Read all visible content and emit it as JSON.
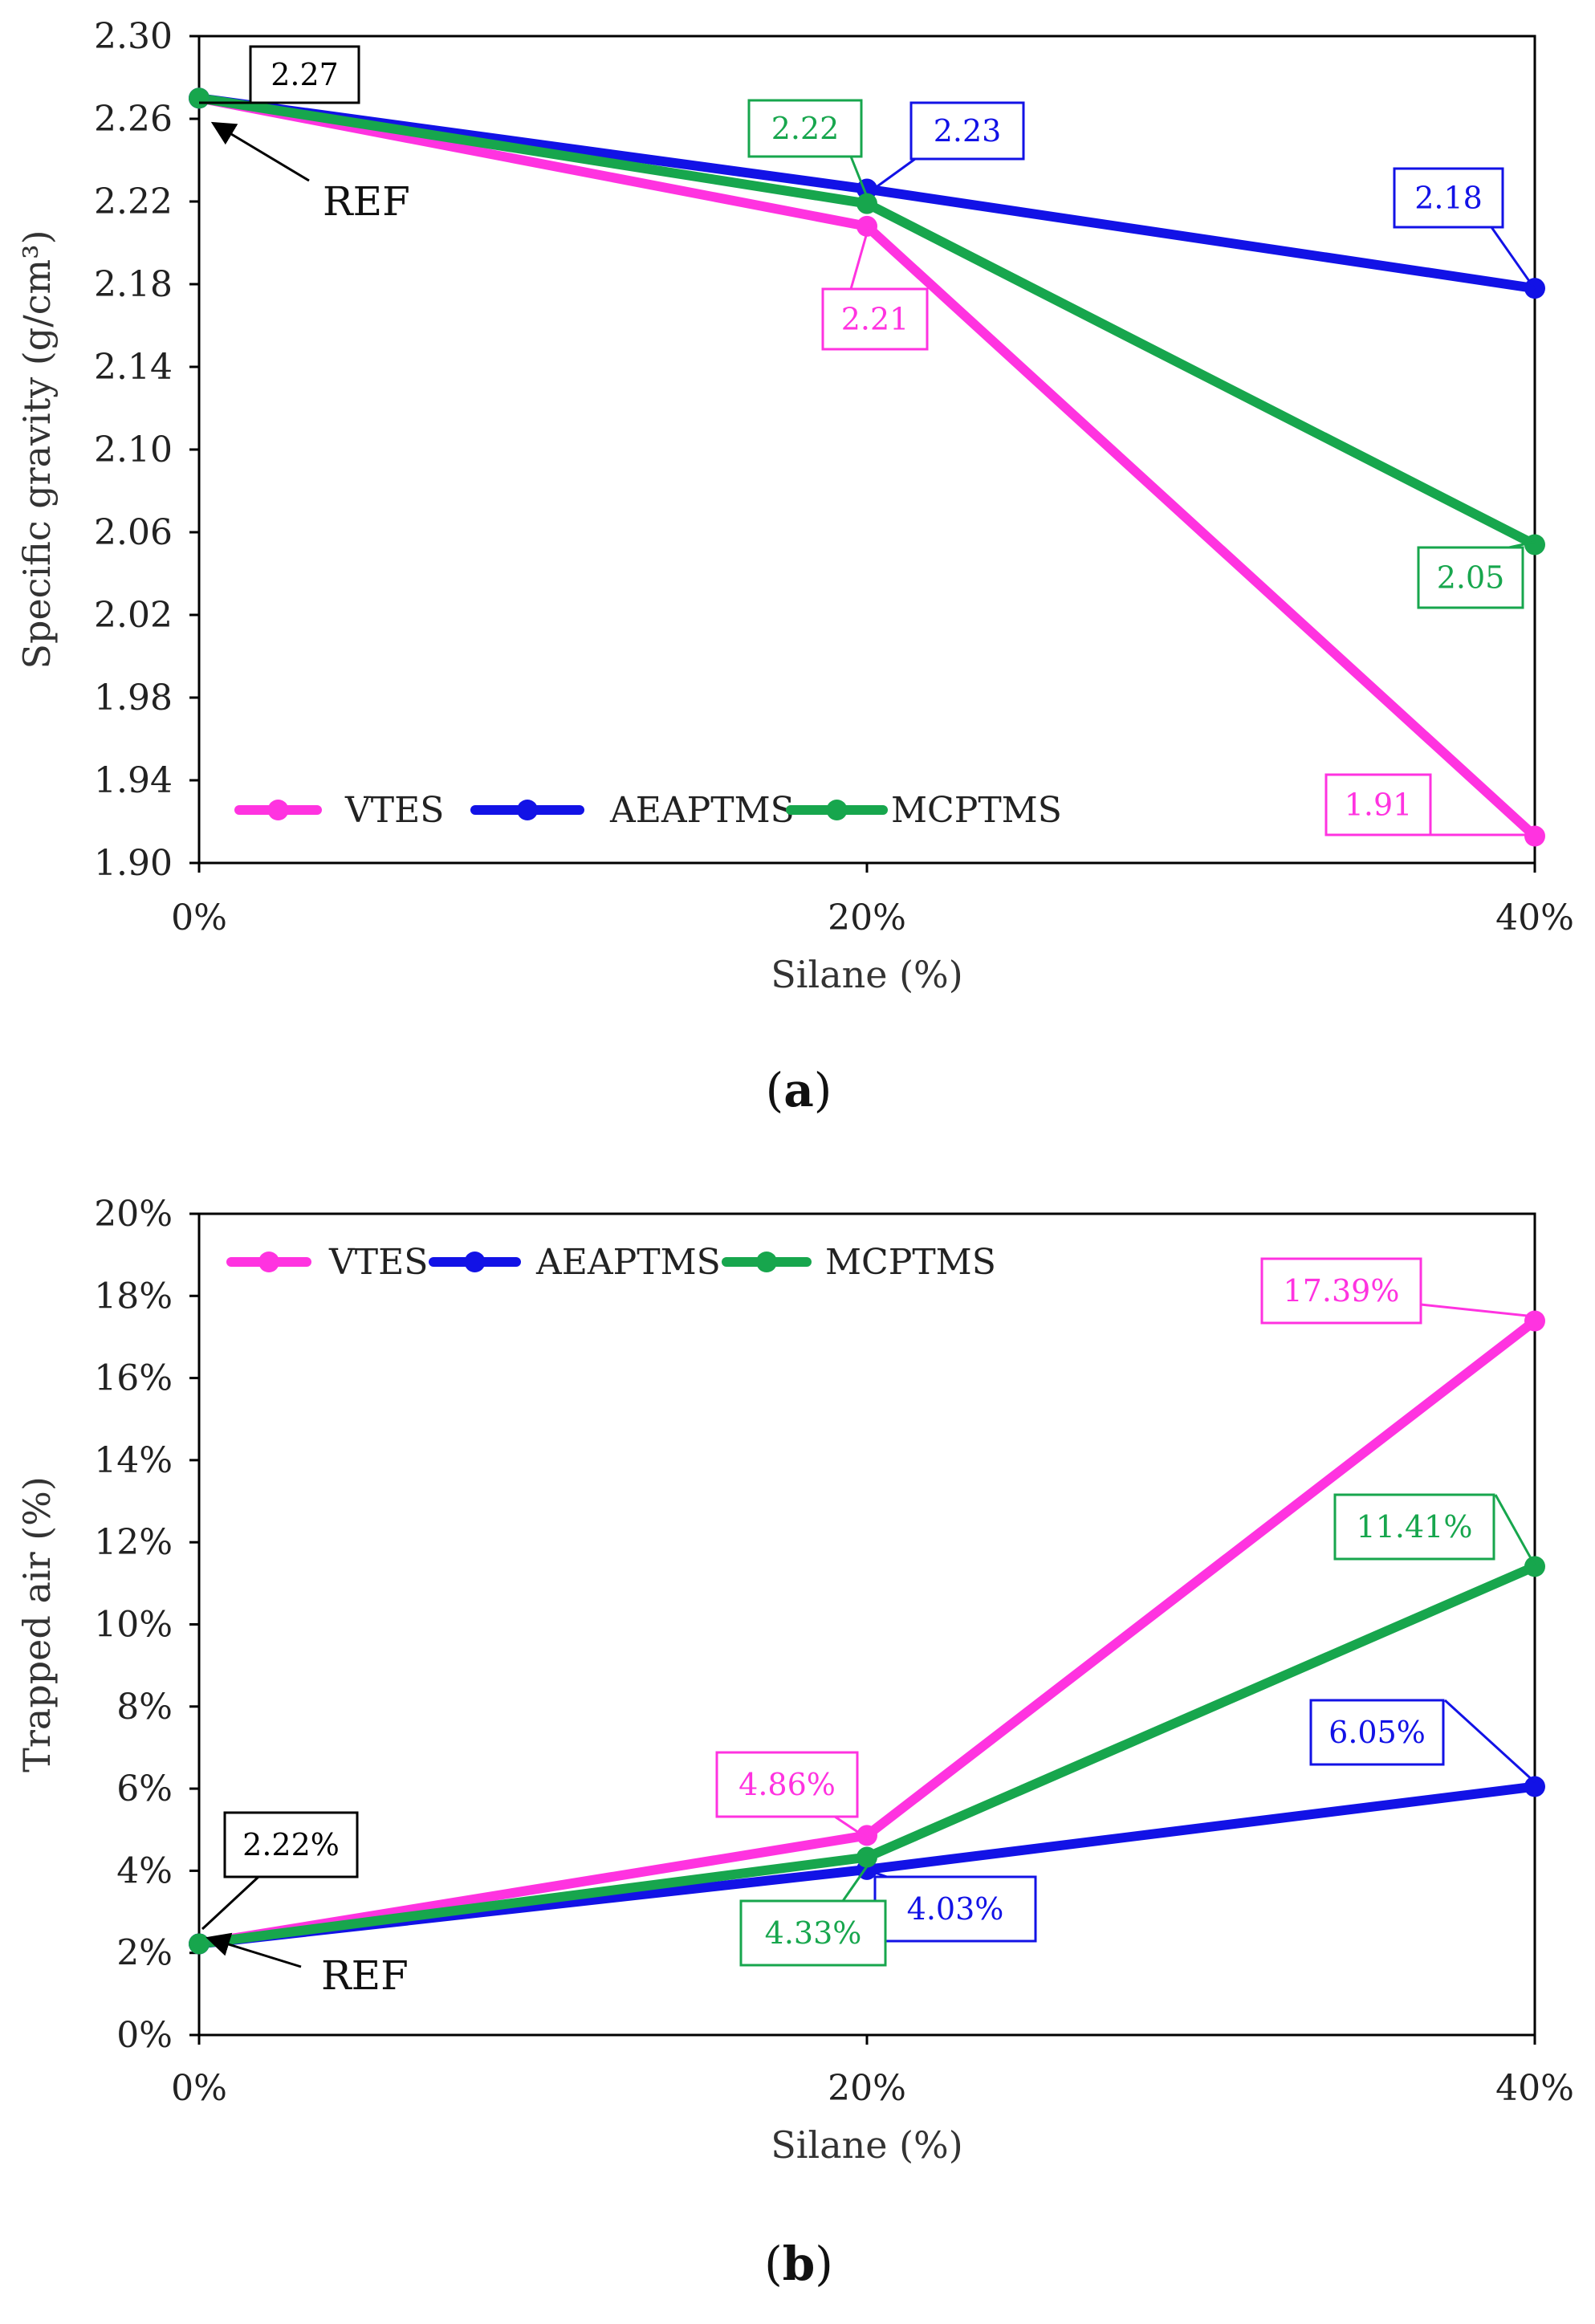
{
  "colors": {
    "VTES": "#FF33E0",
    "AEAPTMS": "#1212E6",
    "MCPTMS": "#17A64D",
    "ref": "#000000"
  },
  "chart_data": [
    {
      "type": "line",
      "caption_letter": "a",
      "xlabel": "Silane (%)",
      "ylabel": "Specific gravity (g/cm³)",
      "categories": [
        "0%",
        "20%",
        "40%"
      ],
      "ylim": [
        1.9,
        2.3
      ],
      "yticks": [
        "1.90",
        "1.94",
        "1.98",
        "2.02",
        "2.06",
        "2.10",
        "2.14",
        "2.18",
        "2.22",
        "2.26",
        "2.30"
      ],
      "ytick_values": [
        1.9,
        1.94,
        1.98,
        2.02,
        2.06,
        2.1,
        2.14,
        2.18,
        2.22,
        2.26,
        2.3
      ],
      "grid": false,
      "legend": "bottom-left",
      "series": [
        {
          "name": "VTES",
          "values": [
            2.27,
            2.208,
            1.913
          ]
        },
        {
          "name": "AEAPTMS",
          "values": [
            2.27,
            2.226,
            2.178
          ]
        },
        {
          "name": "MCPTMS",
          "values": [
            2.27,
            2.219,
            2.054
          ]
        }
      ],
      "annotations": [
        {
          "text": "2.27",
          "series": "REF",
          "point": 0
        },
        {
          "text": "REF",
          "series": "REF",
          "point": 0
        },
        {
          "text": "2.22",
          "series": "MCPTMS",
          "point": 1
        },
        {
          "text": "2.23",
          "series": "AEAPTMS",
          "point": 1
        },
        {
          "text": "2.21",
          "series": "VTES",
          "point": 1
        },
        {
          "text": "2.18",
          "series": "AEAPTMS",
          "point": 2
        },
        {
          "text": "2.05",
          "series": "MCPTMS",
          "point": 2
        },
        {
          "text": "1.91",
          "series": "VTES",
          "point": 2
        }
      ]
    },
    {
      "type": "line",
      "caption_letter": "b",
      "xlabel": "Silane (%)",
      "ylabel": "Trapped air (%)",
      "categories": [
        "0%",
        "20%",
        "40%"
      ],
      "ylim": [
        0,
        20
      ],
      "yticks": [
        "0%",
        "2%",
        "4%",
        "6%",
        "8%",
        "10%",
        "12%",
        "14%",
        "16%",
        "18%",
        "20%"
      ],
      "ytick_values": [
        0,
        2,
        4,
        6,
        8,
        10,
        12,
        14,
        16,
        18,
        20
      ],
      "grid": false,
      "legend": "top-left",
      "series": [
        {
          "name": "VTES",
          "values": [
            2.22,
            4.86,
            17.39
          ]
        },
        {
          "name": "AEAPTMS",
          "values": [
            2.22,
            4.03,
            6.05
          ]
        },
        {
          "name": "MCPTMS",
          "values": [
            2.22,
            4.33,
            11.41
          ]
        }
      ],
      "annotations": [
        {
          "text": "2.22%",
          "series": "REF",
          "point": 0
        },
        {
          "text": "REF",
          "series": "REF",
          "point": 0
        },
        {
          "text": "4.86%",
          "series": "VTES",
          "point": 1
        },
        {
          "text": "4.03%",
          "series": "AEAPTMS",
          "point": 1
        },
        {
          "text": "4.33%",
          "series": "MCPTMS",
          "point": 1
        },
        {
          "text": "17.39%",
          "series": "VTES",
          "point": 2
        },
        {
          "text": "11.41%",
          "series": "MCPTMS",
          "point": 2
        },
        {
          "text": "6.05%",
          "series": "AEAPTMS",
          "point": 2
        }
      ]
    }
  ]
}
